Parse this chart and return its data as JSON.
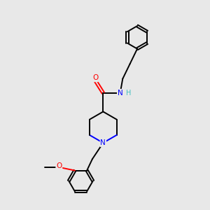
{
  "background_color": "#e8e8e8",
  "atom_colors": {
    "C": "#000000",
    "N": "#0000ff",
    "O": "#ff0000",
    "H": "#40c0c0"
  },
  "fig_width": 3.0,
  "fig_height": 3.0,
  "dpi": 100,
  "lw": 1.4,
  "fontsize": 7.5
}
